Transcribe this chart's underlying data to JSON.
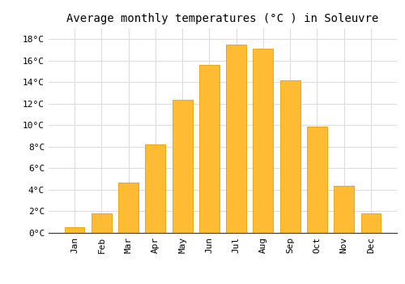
{
  "title": "Average monthly temperatures (°C ) in Soleuvre",
  "months": [
    "Jan",
    "Feb",
    "Mar",
    "Apr",
    "May",
    "Jun",
    "Jul",
    "Aug",
    "Sep",
    "Oct",
    "Nov",
    "Dec"
  ],
  "temperatures": [
    0.5,
    1.8,
    4.7,
    8.2,
    12.4,
    15.6,
    17.5,
    17.1,
    14.2,
    9.9,
    4.4,
    1.8
  ],
  "bar_color": "#FFBB33",
  "bar_edge_color": "#E8A000",
  "ylim": [
    0,
    19
  ],
  "yticks": [
    0,
    2,
    4,
    6,
    8,
    10,
    12,
    14,
    16,
    18
  ],
  "background_color": "#FFFFFF",
  "plot_bg_color": "#FFFFFF",
  "grid_color": "#DDDDDD",
  "title_fontsize": 10,
  "tick_fontsize": 8,
  "font_family": "monospace",
  "bar_width": 0.75
}
